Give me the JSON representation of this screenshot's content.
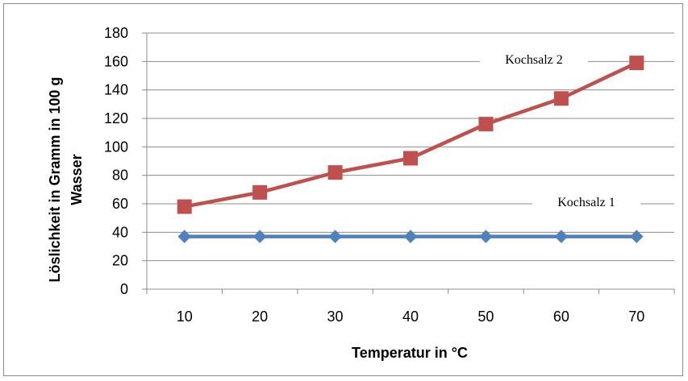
{
  "chart_data": {
    "type": "line",
    "title": "",
    "xlabel": "Temperatur in °C",
    "ylabel_line1": "Löslichkeit in Gramm in 100 g",
    "ylabel_line2": "Wasser",
    "categories": [
      "10",
      "20",
      "30",
      "40",
      "50",
      "60",
      "70"
    ],
    "y_ticks": [
      "0",
      "20",
      "40",
      "60",
      "80",
      "100",
      "120",
      "140",
      "160",
      "180"
    ],
    "ylim": [
      0,
      180
    ],
    "grid": true,
    "legend": "none",
    "series": [
      {
        "name": "Kochsalz 1",
        "values": [
          37,
          37,
          37,
          37,
          37,
          37,
          37
        ],
        "color": "#4f81bd",
        "marker_color": "#4f81bd",
        "marker": "diamond"
      },
      {
        "name": "Kochsalz 2",
        "values": [
          58,
          68,
          82,
          92,
          116,
          134,
          159
        ],
        "color": "#c0504d",
        "marker_color": "#c0504d",
        "marker": "square"
      }
    ]
  }
}
